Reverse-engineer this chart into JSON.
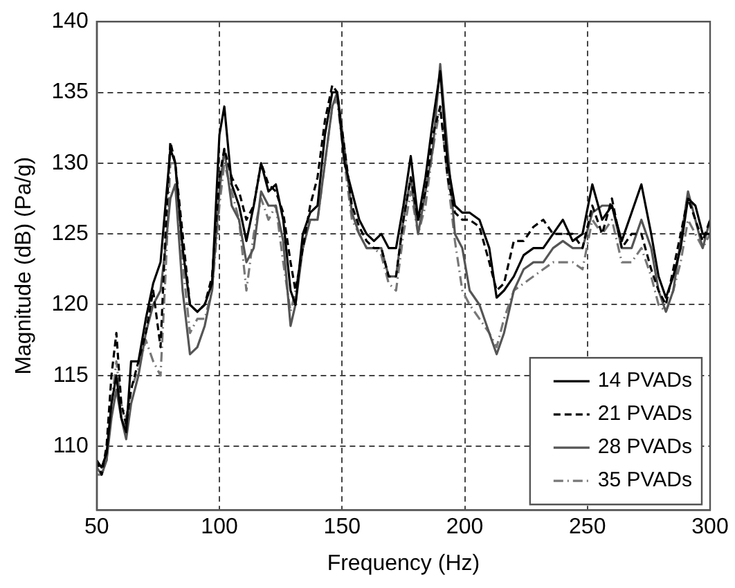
{
  "chart_data": {
    "type": "line",
    "xlabel": "Frequency (Hz)",
    "ylabel": "Magnitude (dB) (Pa/g)",
    "x": [
      50,
      52,
      54,
      56,
      58,
      60,
      62,
      64,
      67,
      70,
      73,
      76,
      78,
      80,
      82,
      85,
      88,
      91,
      94,
      97,
      100,
      102,
      105,
      108,
      111,
      114,
      117,
      120,
      123,
      126,
      129,
      131,
      134,
      137,
      140,
      143,
      146,
      148,
      151,
      154,
      157,
      160,
      163,
      166,
      169,
      172,
      175,
      178,
      181,
      184,
      187,
      190,
      193,
      196,
      199,
      202,
      206,
      210,
      213,
      216,
      220,
      224,
      228,
      232,
      236,
      240,
      244,
      248,
      252,
      256,
      260,
      264,
      268,
      272,
      276,
      279,
      282,
      285,
      288,
      291,
      294,
      297,
      300
    ],
    "xlim": [
      50,
      300
    ],
    "xticks": [
      50,
      100,
      150,
      200,
      250,
      300
    ],
    "ylim": [
      105.5,
      140
    ],
    "yticks": [
      110,
      115,
      120,
      125,
      130,
      135,
      140
    ],
    "grid": true,
    "legend": "bottom right",
    "marker": "none",
    "series": [
      {
        "name": "14 PVADs",
        "color": "#000000",
        "line_style": "solid",
        "values": [
          109,
          108.5,
          109.5,
          113,
          115,
          112,
          111,
          116,
          116,
          119,
          121.5,
          123,
          127,
          131,
          130,
          124,
          120,
          119.5,
          120,
          121.5,
          132,
          134,
          128.5,
          127,
          124.5,
          127,
          130,
          128,
          128.5,
          126,
          121,
          120,
          125,
          126.5,
          127,
          132,
          135,
          135,
          130,
          128,
          126,
          125,
          124.5,
          125,
          124,
          124,
          127,
          130.5,
          126,
          129,
          133,
          136.5,
          130,
          127,
          126.5,
          126.5,
          126,
          124,
          120.5,
          121,
          122,
          123.5,
          124,
          124,
          125,
          126,
          124.5,
          125,
          128.5,
          126,
          127,
          124.5,
          126.5,
          128.5,
          125,
          122,
          120.5,
          122,
          124,
          127.5,
          127,
          125,
          125
        ]
      },
      {
        "name": "21 PVADs",
        "color": "#000000",
        "line_style": "dashed",
        "values": [
          109,
          108,
          110,
          115,
          118,
          113,
          111.5,
          114,
          116,
          118,
          121,
          117,
          125,
          131.5,
          130,
          125,
          120,
          119.5,
          120,
          122,
          129,
          131,
          129,
          128,
          126,
          127,
          130,
          128.5,
          128,
          126.5,
          123,
          121,
          124,
          127,
          129,
          133,
          135.5,
          135,
          131,
          127,
          125.5,
          124.5,
          124,
          124,
          122,
          122,
          126,
          129,
          126,
          128,
          132,
          134,
          129,
          126.5,
          126,
          126,
          125.5,
          123,
          121,
          121.5,
          124.5,
          124.5,
          125.5,
          126,
          125,
          125,
          125,
          124,
          127,
          125,
          127.5,
          124,
          125,
          125,
          122.5,
          121,
          120,
          122.5,
          125,
          127.5,
          126,
          124.5,
          126
        ]
      },
      {
        "name": "28 PVADs",
        "color": "#555555",
        "line_style": "solid",
        "values": [
          108.5,
          108,
          109,
          112,
          114,
          112,
          110.5,
          113,
          115,
          118,
          120,
          121,
          124,
          127.5,
          128.5,
          121,
          116.5,
          117,
          118.5,
          121,
          128,
          131,
          127,
          126,
          123,
          124,
          128,
          127,
          127,
          124.5,
          118.5,
          120,
          124,
          126,
          126,
          130,
          134,
          135,
          131,
          126.5,
          125,
          124,
          124,
          124,
          122,
          122,
          126,
          129,
          125,
          128,
          131,
          137,
          131,
          125,
          124,
          121,
          120,
          118,
          116.5,
          118,
          121,
          122.5,
          123,
          123,
          124,
          124.5,
          124,
          124,
          126.5,
          127,
          127,
          124,
          124,
          126,
          124,
          121,
          119.5,
          121,
          124.5,
          128,
          126,
          124,
          126
        ]
      },
      {
        "name": "35 PVADs",
        "color": "#777777",
        "line_style": "dashdot",
        "values": [
          108,
          108,
          109,
          113,
          116,
          113,
          112,
          114,
          115.5,
          117.5,
          116,
          115,
          122,
          130,
          130,
          123,
          118,
          119,
          119,
          121,
          127,
          130,
          128,
          126,
          121,
          125,
          127.5,
          126,
          127,
          123,
          119.5,
          121,
          124,
          126,
          126,
          130,
          134,
          134.5,
          130,
          126,
          125,
          124,
          124,
          123.5,
          121.5,
          121,
          125,
          128,
          125,
          127,
          131,
          134,
          129,
          124.5,
          121,
          120,
          119,
          118,
          117,
          119,
          121,
          121.5,
          122,
          122.5,
          123,
          123,
          123,
          122.5,
          126,
          125,
          126,
          123,
          123,
          124,
          122,
          120,
          119.5,
          121,
          123,
          126,
          125,
          124,
          125
        ]
      }
    ]
  }
}
